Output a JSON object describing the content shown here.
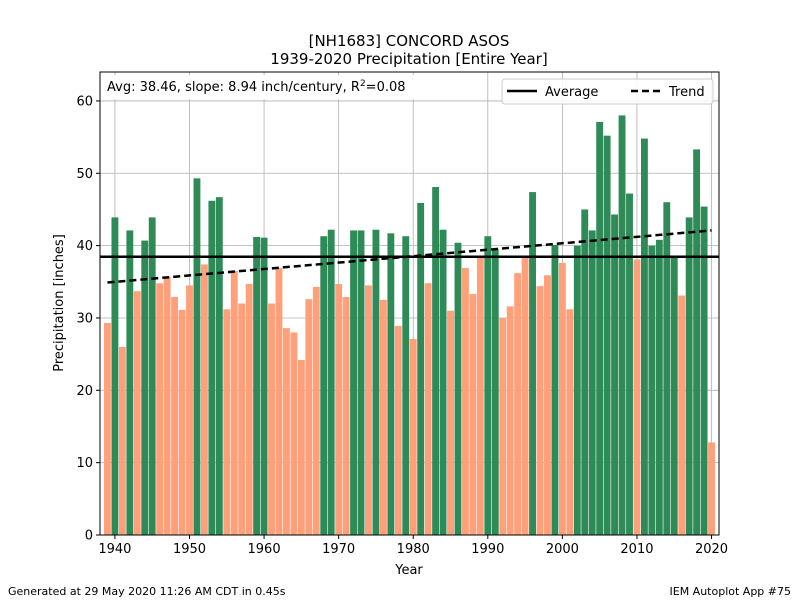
{
  "chart_data": {
    "type": "bar",
    "title": "[NH1683] CONCORD ASOS",
    "subtitle": "1939-2020 Precipitation [Entire Year]",
    "xlabel": "Year",
    "ylabel": "Precipitation [inches]",
    "xlim": [
      1938,
      2021
    ],
    "ylim": [
      0,
      64
    ],
    "xticks": [
      1940,
      1950,
      1960,
      1970,
      1980,
      1990,
      2000,
      2010,
      2020
    ],
    "yticks": [
      0,
      10,
      20,
      30,
      40,
      50,
      60
    ],
    "grid": true,
    "legend_position": "top-right",
    "annotation": {
      "prefix": "Avg: 38.46, slope: 8.94 inch/century, R",
      "sup": "2",
      "suffix": "=0.08"
    },
    "average": 38.46,
    "trend": {
      "start": [
        1939,
        34.9
      ],
      "end": [
        2020,
        42.1
      ]
    },
    "legend": [
      {
        "label": "Average",
        "style": "solid"
      },
      {
        "label": "Trend",
        "style": "dashed"
      }
    ],
    "colors": {
      "above": "#2e8b57",
      "below": "#ffa07a",
      "line": "#000000"
    },
    "x": [
      1939,
      1940,
      1941,
      1942,
      1943,
      1944,
      1945,
      1946,
      1947,
      1948,
      1949,
      1950,
      1951,
      1952,
      1953,
      1954,
      1955,
      1956,
      1957,
      1958,
      1959,
      1960,
      1961,
      1962,
      1963,
      1964,
      1965,
      1966,
      1967,
      1968,
      1969,
      1970,
      1971,
      1972,
      1973,
      1974,
      1975,
      1976,
      1977,
      1978,
      1979,
      1980,
      1981,
      1982,
      1983,
      1984,
      1985,
      1986,
      1987,
      1988,
      1989,
      1990,
      1991,
      1992,
      1993,
      1994,
      1995,
      1996,
      1997,
      1998,
      1999,
      2000,
      2001,
      2002,
      2003,
      2004,
      2005,
      2006,
      2007,
      2008,
      2009,
      2010,
      2011,
      2012,
      2013,
      2014,
      2015,
      2016,
      2017,
      2018,
      2019,
      2020
    ],
    "values": [
      29.3,
      43.9,
      26.0,
      42.1,
      33.7,
      40.7,
      43.9,
      34.8,
      35.7,
      32.9,
      31.1,
      34.5,
      49.3,
      37.4,
      46.2,
      46.7,
      31.2,
      36.5,
      32.0,
      34.7,
      41.2,
      41.1,
      32.0,
      36.9,
      28.6,
      28.0,
      24.2,
      32.6,
      34.3,
      41.3,
      42.2,
      34.7,
      32.9,
      42.1,
      42.1,
      34.5,
      42.2,
      32.5,
      41.7,
      28.9,
      41.3,
      27.1,
      45.9,
      34.8,
      48.1,
      42.2,
      31.0,
      40.4,
      36.9,
      33.3,
      38.3,
      41.3,
      39.5,
      30.0,
      31.6,
      36.2,
      38.3,
      47.4,
      34.4,
      35.9,
      40.1,
      37.6,
      31.2,
      40.0,
      45.0,
      42.1,
      57.1,
      55.2,
      44.3,
      58.0,
      47.2,
      38.1,
      54.8,
      40.0,
      40.8,
      46.0,
      38.5,
      33.1,
      43.9,
      53.3,
      45.4,
      12.8
    ]
  },
  "footer": {
    "left": "Generated at 29 May 2020 11:26 AM CDT in 0.45s",
    "right": "IEM Autoplot App #75"
  }
}
